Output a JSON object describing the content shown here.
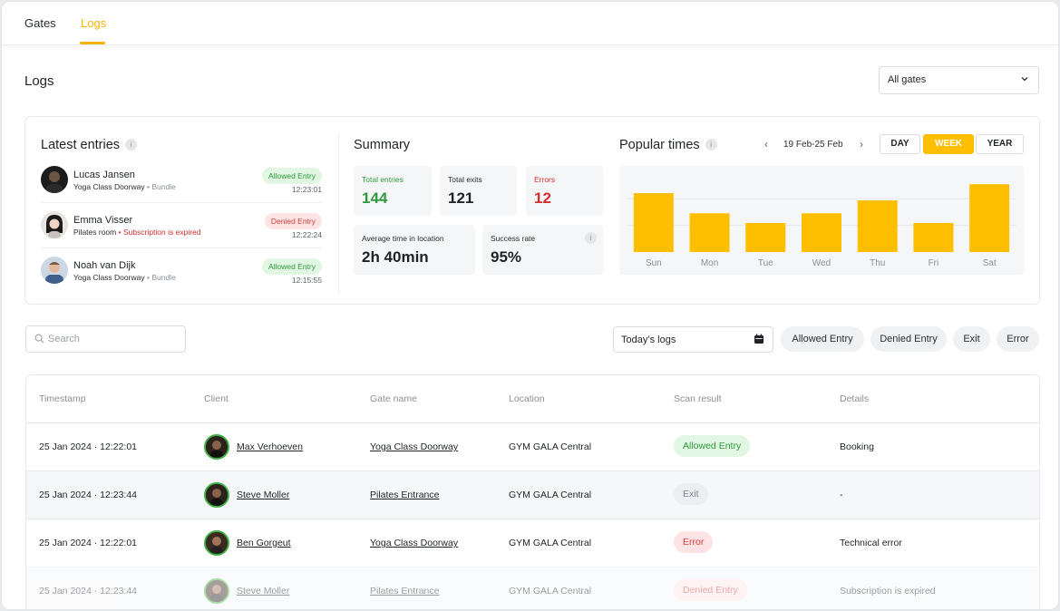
{
  "nav": {
    "tabs": [
      {
        "label": "Gates"
      },
      {
        "label": "Logs"
      }
    ]
  },
  "page": {
    "title": "Logs"
  },
  "gate_select": {
    "value": "All gates"
  },
  "latest": {
    "title": "Latest entries",
    "info": "i",
    "entries": [
      {
        "name": "Lucas Jansen",
        "location": "Yoga Class Doorway",
        "tag": "Bundle",
        "status": "Allowed Entry",
        "time": "12:23:01"
      },
      {
        "name": "Emma Visser",
        "location": "Pilates room",
        "tag": "Subscription is expired",
        "status": "Denied Entry",
        "time": "12:22:24"
      },
      {
        "name": "Noah van Dijk",
        "location": "Yoga Class Doorway",
        "tag": "Bundle",
        "status": "Allowed Entry",
        "time": "12:15:55"
      }
    ]
  },
  "summary": {
    "title": "Summary",
    "total_entries": {
      "label": "Total entries",
      "value": "144",
      "color": "#2e9a3a"
    },
    "total_exits": {
      "label": "Total exits",
      "value": "121"
    },
    "errors": {
      "label": "Errors",
      "value": "12",
      "color": "#d32f2f"
    },
    "avg_time": {
      "label": "Average time in location",
      "value": "2h 40min"
    },
    "success": {
      "label": "Success rate",
      "value": "95%",
      "info": "i"
    }
  },
  "popular": {
    "title": "Popular times",
    "info": "i",
    "range": "19 Feb-25 Feb",
    "prev": "‹",
    "next": "›",
    "periods": [
      "DAY",
      "WEEK",
      "YEAR"
    ],
    "active_period": "WEEK"
  },
  "chart_data": {
    "type": "bar",
    "categories": [
      "Sun",
      "Mon",
      "Tue",
      "Wed",
      "Thu",
      "Fri",
      "Sat"
    ],
    "values": [
      73,
      48,
      36,
      48,
      64,
      36,
      84
    ],
    "ylim": [
      0,
      100
    ],
    "grid": true,
    "bar_color": "#ffbf00"
  },
  "filters": {
    "search_placeholder": "Search",
    "date": "Today’s logs",
    "buttons": [
      "Allowed Entry",
      "Denied Entry",
      "Exit",
      "Error"
    ]
  },
  "table": {
    "headers": [
      "Timestamp",
      "Client",
      "Gate name",
      "Location",
      "Scan result",
      "Details"
    ],
    "rows": [
      {
        "timestamp": "25 Jan 2024 · 12:22:01",
        "client": "Max Verhoeven",
        "gate": "Yoga Class Doorway",
        "location": "GYM GALA Central",
        "result": "Allowed Entry",
        "details": "Booking"
      },
      {
        "timestamp": "25 Jan 2024 · 12:23:44",
        "client": "Steve Moller",
        "gate": "Pilates Entrance",
        "location": "GYM GALA Central",
        "result": "Exit",
        "details": "-"
      },
      {
        "timestamp": "25 Jan 2024 · 12:22:01",
        "client": "Ben Gorgeut",
        "gate": "Yoga Class Doorway",
        "location": "GYM GALA Central",
        "result": "Error",
        "details": "Technical error"
      },
      {
        "timestamp": "25 Jan 2024 · 12:23:44",
        "client": "Steve Moller",
        "gate": "Pilates Entrance",
        "location": "GYM GALA Central",
        "result": "Denied Entry",
        "details": "Subscription is expired"
      }
    ]
  },
  "colors": {
    "accent": "#ffbf00",
    "allowed": "#2e9a3a",
    "denied": "#d33d3d"
  }
}
